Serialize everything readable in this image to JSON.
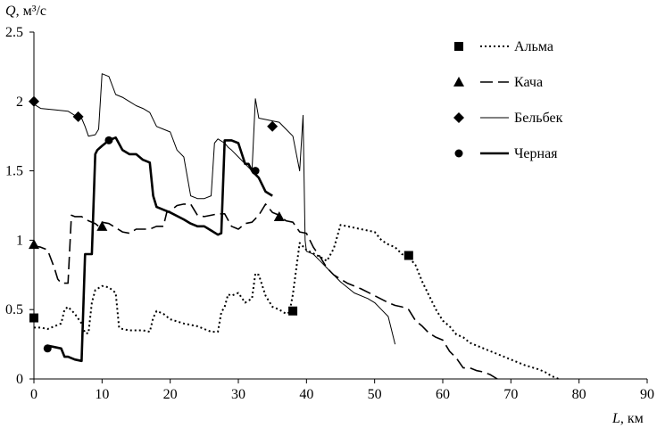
{
  "chart_data": {
    "type": "line",
    "ylabel_var": "Q",
    "ylabel_unit": ", м³/с",
    "xlabel_var": "L",
    "xlabel_unit": ", км",
    "xlim": [
      0,
      90
    ],
    "ylim": [
      0,
      2.5
    ],
    "x_ticks": [
      "0",
      "10",
      "20",
      "30",
      "40",
      "50",
      "60",
      "70",
      "80",
      "90"
    ],
    "y_ticks": [
      "0",
      "0.5",
      "1",
      "1.5",
      "2",
      "2.5"
    ],
    "grid": false,
    "legend_position": "top-right",
    "series": [
      {
        "name": "Альма",
        "marker": "square",
        "dash": "dotted",
        "stroke_width": 2,
        "markers": [
          [
            0,
            0.44
          ],
          [
            38,
            0.49
          ],
          [
            55,
            0.89
          ]
        ],
        "x": [
          0,
          0.5,
          1,
          2,
          3,
          4,
          4.5,
          5,
          6,
          7,
          7.5,
          8,
          8.5,
          9,
          10,
          11,
          12,
          12.5,
          13,
          14,
          16,
          17,
          17.5,
          18,
          19,
          20,
          22,
          24,
          25,
          26,
          27,
          27.5,
          28,
          28.5,
          29,
          30,
          31,
          32,
          32.5,
          33,
          34,
          35,
          36,
          37,
          37.5,
          38,
          39,
          40,
          42,
          43,
          44,
          45,
          46,
          48,
          50,
          51,
          52,
          53,
          54,
          55,
          56,
          57,
          58,
          59,
          60,
          61,
          62,
          63,
          64,
          65,
          66,
          67,
          68,
          69,
          70,
          72,
          74,
          75,
          76,
          77
        ],
        "y": [
          0.37,
          0.37,
          0.37,
          0.36,
          0.38,
          0.4,
          0.5,
          0.52,
          0.47,
          0.4,
          0.33,
          0.33,
          0.55,
          0.64,
          0.67,
          0.66,
          0.62,
          0.37,
          0.36,
          0.35,
          0.35,
          0.34,
          0.44,
          0.49,
          0.47,
          0.43,
          0.4,
          0.38,
          0.36,
          0.34,
          0.34,
          0.48,
          0.52,
          0.61,
          0.6,
          0.62,
          0.55,
          0.58,
          0.76,
          0.75,
          0.6,
          0.52,
          0.5,
          0.47,
          0.48,
          0.61,
          0.98,
          0.93,
          0.88,
          0.85,
          0.94,
          1.11,
          1.1,
          1.08,
          1.06,
          1.0,
          0.97,
          0.95,
          0.9,
          0.88,
          0.82,
          0.7,
          0.6,
          0.5,
          0.42,
          0.38,
          0.32,
          0.3,
          0.26,
          0.24,
          0.22,
          0.2,
          0.18,
          0.16,
          0.14,
          0.1,
          0.07,
          0.05,
          0.02,
          0.0
        ]
      },
      {
        "name": "Кача",
        "marker": "triangle",
        "dash": "dashed",
        "stroke_width": 1.6,
        "markers": [
          [
            0,
            0.97
          ],
          [
            10,
            1.1
          ],
          [
            36,
            1.17
          ]
        ],
        "x": [
          0,
          1,
          2,
          3,
          3.5,
          4,
          5,
          5.5,
          6,
          7,
          8,
          9,
          9.5,
          10,
          11,
          13,
          14,
          15,
          17,
          18,
          19,
          19.5,
          20,
          21,
          22,
          23,
          24,
          25,
          26,
          27,
          28,
          29,
          30,
          31,
          32,
          33,
          34,
          35,
          36,
          37,
          38,
          39,
          40,
          41,
          42,
          43,
          44,
          45,
          46,
          48,
          50,
          52,
          53,
          54,
          55,
          56,
          57,
          58,
          59,
          60,
          61,
          62,
          63,
          64,
          65,
          66,
          67,
          68
        ],
        "y": [
          0.96,
          0.95,
          0.93,
          0.8,
          0.72,
          0.69,
          0.69,
          1.18,
          1.17,
          1.17,
          1.14,
          1.12,
          1.1,
          1.13,
          1.12,
          1.06,
          1.05,
          1.08,
          1.08,
          1.1,
          1.1,
          1.2,
          1.21,
          1.25,
          1.26,
          1.26,
          1.18,
          1.17,
          1.18,
          1.19,
          1.19,
          1.1,
          1.08,
          1.12,
          1.13,
          1.18,
          1.26,
          1.2,
          1.18,
          1.14,
          1.13,
          1.06,
          1.05,
          0.95,
          0.88,
          0.8,
          0.75,
          0.72,
          0.69,
          0.65,
          0.6,
          0.55,
          0.53,
          0.52,
          0.5,
          0.42,
          0.38,
          0.33,
          0.3,
          0.28,
          0.2,
          0.15,
          0.08,
          0.08,
          0.06,
          0.05,
          0.03,
          0.0
        ]
      },
      {
        "name": "Бельбек",
        "marker": "diamond",
        "dash": "solid",
        "stroke_width": 1,
        "markers": [
          [
            0,
            2.0
          ],
          [
            6.5,
            1.89
          ],
          [
            35,
            1.82
          ]
        ],
        "x": [
          0,
          1,
          3,
          5,
          6,
          7,
          7.5,
          8,
          9,
          9.5,
          10,
          11,
          12,
          13,
          14,
          15,
          16,
          17,
          18,
          19,
          20,
          21,
          22,
          23,
          24,
          25,
          26,
          26.5,
          27,
          28,
          28.5,
          29,
          30,
          31,
          32,
          32.5,
          33,
          34,
          35,
          36,
          37,
          38,
          39,
          39.5,
          39.8,
          40,
          41,
          42,
          43,
          45,
          47,
          49,
          50,
          51,
          52,
          53
        ],
        "y": [
          1.98,
          1.95,
          1.94,
          1.93,
          1.9,
          1.88,
          1.82,
          1.75,
          1.76,
          1.8,
          2.2,
          2.18,
          2.05,
          2.03,
          2.0,
          1.97,
          1.95,
          1.92,
          1.82,
          1.8,
          1.78,
          1.65,
          1.6,
          1.32,
          1.3,
          1.3,
          1.32,
          1.7,
          1.73,
          1.7,
          1.67,
          1.65,
          1.6,
          1.55,
          1.5,
          2.02,
          1.88,
          1.87,
          1.86,
          1.85,
          1.8,
          1.75,
          1.5,
          1.9,
          1.0,
          0.92,
          0.9,
          0.85,
          0.8,
          0.7,
          0.62,
          0.58,
          0.55,
          0.5,
          0.45,
          0.25
        ]
      },
      {
        "name": "Черная",
        "marker": "circle",
        "dash": "solid",
        "stroke_width": 2.6,
        "markers": [
          [
            2,
            0.22
          ],
          [
            11,
            1.72
          ],
          [
            32.5,
            1.5
          ]
        ],
        "x": [
          2,
          3,
          4,
          4.5,
          5,
          6,
          7,
          7.5,
          8,
          8.5,
          9,
          9.3,
          10,
          11,
          12,
          13,
          14,
          15,
          16,
          17,
          17.5,
          18,
          19,
          20,
          22,
          23,
          24,
          25,
          26,
          27,
          27.5,
          28,
          29,
          30,
          31,
          31.5,
          32,
          33,
          34,
          35
        ],
        "y": [
          0.24,
          0.23,
          0.22,
          0.16,
          0.16,
          0.14,
          0.13,
          0.9,
          0.9,
          0.9,
          1.62,
          1.65,
          1.68,
          1.72,
          1.74,
          1.65,
          1.62,
          1.62,
          1.58,
          1.56,
          1.32,
          1.24,
          1.22,
          1.2,
          1.15,
          1.12,
          1.1,
          1.1,
          1.07,
          1.04,
          1.05,
          1.72,
          1.72,
          1.7,
          1.55,
          1.55,
          1.5,
          1.45,
          1.35,
          1.32
        ]
      }
    ]
  }
}
